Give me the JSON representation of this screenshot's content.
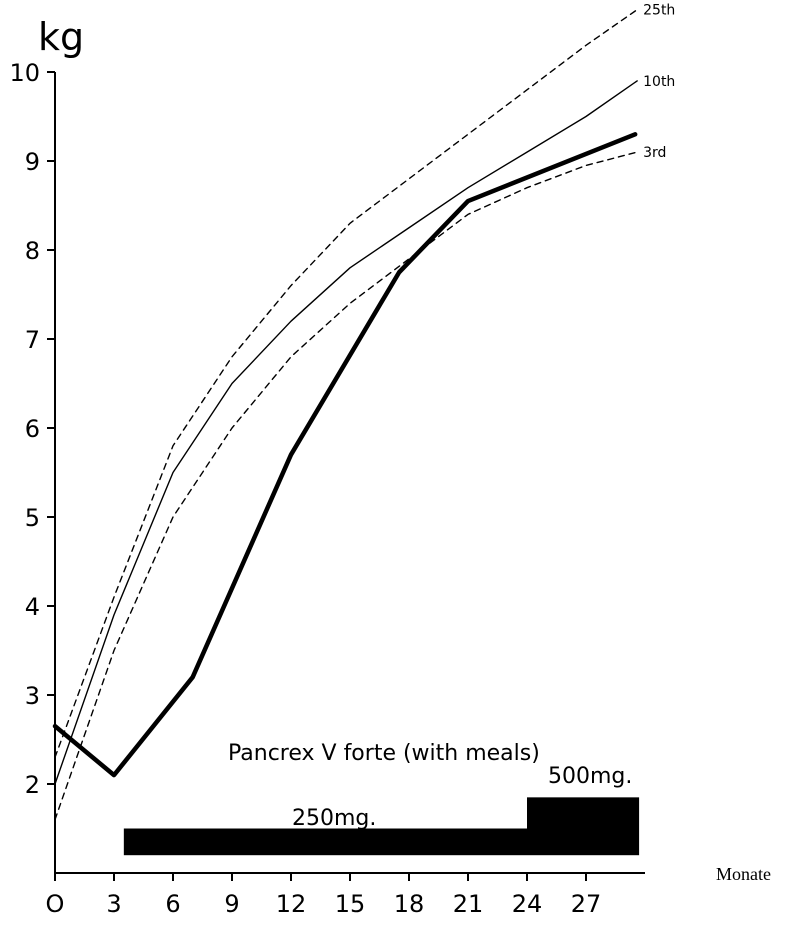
{
  "chart_data": {
    "type": "line",
    "xlabel": "Monate",
    "ylabel": "kg",
    "xlim": [
      0,
      30
    ],
    "ylim": [
      1,
      10
    ],
    "grid": false,
    "legend": "none",
    "xticks": [
      {
        "value": 0,
        "label": "O"
      },
      {
        "value": 3,
        "label": "3"
      },
      {
        "value": 6,
        "label": "6"
      },
      {
        "value": 9,
        "label": "9"
      },
      {
        "value": 12,
        "label": "12"
      },
      {
        "value": 15,
        "label": "15"
      },
      {
        "value": 18,
        "label": "18"
      },
      {
        "value": 21,
        "label": "21"
      },
      {
        "value": 24,
        "label": "24"
      },
      {
        "value": 27,
        "label": "27"
      }
    ],
    "yticks": [
      {
        "value": 2,
        "label": "2"
      },
      {
        "value": 3,
        "label": "3"
      },
      {
        "value": 4,
        "label": "4"
      },
      {
        "value": 5,
        "label": "5"
      },
      {
        "value": 6,
        "label": "6"
      },
      {
        "value": 7,
        "label": "7"
      },
      {
        "value": 8,
        "label": "8"
      },
      {
        "value": 9,
        "label": "9"
      },
      {
        "value": 10,
        "label": "10"
      }
    ],
    "series": [
      {
        "name": "25th",
        "style": "dashed-thin",
        "color": "#000000",
        "x": [
          0,
          3,
          6,
          9,
          12,
          15,
          18,
          21,
          24,
          27,
          29.6
        ],
        "y": [
          2.3,
          4.1,
          5.8,
          6.8,
          7.6,
          8.3,
          8.8,
          9.3,
          9.8,
          10.3,
          10.7
        ]
      },
      {
        "name": "10th",
        "style": "solid-thin",
        "color": "#000000",
        "x": [
          0,
          3,
          6,
          9,
          12,
          15,
          18,
          21,
          24,
          27,
          29.6
        ],
        "y": [
          2.0,
          3.9,
          5.5,
          6.5,
          7.2,
          7.8,
          8.25,
          8.7,
          9.1,
          9.5,
          9.9
        ]
      },
      {
        "name": "3rd",
        "style": "dashed-thin",
        "color": "#000000",
        "x": [
          0,
          3,
          6,
          9,
          12,
          15,
          18,
          21,
          24,
          27,
          29.6
        ],
        "y": [
          1.6,
          3.5,
          5.0,
          6.0,
          6.8,
          7.4,
          7.9,
          8.4,
          8.7,
          8.95,
          9.1
        ]
      },
      {
        "style": "solid-thick",
        "color": "#000000",
        "x": [
          0,
          3,
          7,
          12,
          17.5,
          21,
          29.5
        ],
        "y": [
          2.65,
          2.1,
          3.2,
          5.7,
          7.75,
          8.55,
          9.3
        ]
      }
    ],
    "annotations": {
      "title_text": "Pancrex V forte (with meals)",
      "dose_low_label": "250mg.",
      "dose_high_label": "500mg."
    },
    "dose_bars": [
      {
        "label": "250mg.",
        "x_start": 3.5,
        "x_end": 24,
        "y_bottom": 1.2,
        "y_top": 1.5
      },
      {
        "label": "500mg.",
        "x_start": 24,
        "x_end": 29.7,
        "y_bottom": 1.2,
        "y_top": 1.85
      }
    ]
  }
}
